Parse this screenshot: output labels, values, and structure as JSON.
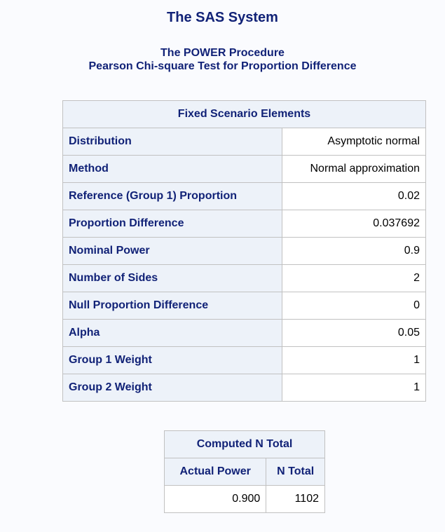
{
  "system_title": "The SAS System",
  "procedure_title": "The POWER Procedure",
  "test_title": "Pearson Chi-square Test for Proportion Difference",
  "fixed_scenario": {
    "header": "Fixed Scenario Elements",
    "rows": [
      {
        "label": "Distribution",
        "value": "Asymptotic normal"
      },
      {
        "label": "Method",
        "value": "Normal approximation"
      },
      {
        "label": "Reference (Group 1) Proportion",
        "value": "0.02"
      },
      {
        "label": "Proportion Difference",
        "value": "0.037692"
      },
      {
        "label": "Nominal Power",
        "value": "0.9"
      },
      {
        "label": "Number of Sides",
        "value": "2"
      },
      {
        "label": "Null Proportion Difference",
        "value": "0"
      },
      {
        "label": "Alpha",
        "value": "0.05"
      },
      {
        "label": "Group 1 Weight",
        "value": "1"
      },
      {
        "label": "Group 2 Weight",
        "value": "1"
      }
    ]
  },
  "computed": {
    "header": "Computed N Total",
    "columns": [
      "Actual Power",
      "N Total"
    ],
    "rows": [
      [
        "0.900",
        "1102"
      ]
    ]
  },
  "colors": {
    "title_text": "#112277",
    "header_background": "#edf2f9",
    "page_background": "#fafbfe",
    "border": "#c1c1c1"
  }
}
